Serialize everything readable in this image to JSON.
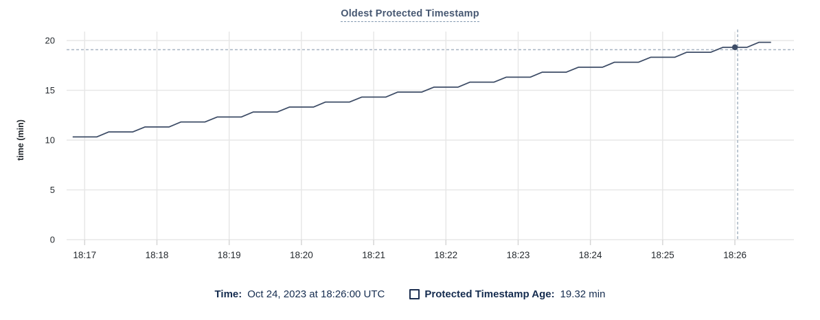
{
  "header": {
    "title": "Oldest Protected Timestamp"
  },
  "footer": {
    "time_label": "Time:",
    "time_value": "Oct 24, 2023 at 18:26:00 UTC",
    "series_label": "Protected Timestamp Age:",
    "series_value": "19.32 min"
  },
  "colors": {
    "line": "#3d4c66",
    "dot": "#3d4c66",
    "grid": "#e7e7e7",
    "tick_stub": "#d6d6d6",
    "crosshair": "#a6b4c2",
    "axis_text": "#24292e",
    "title_text": "#475872",
    "footer_text": "#152c4f"
  },
  "chart_data": {
    "type": "line",
    "title": "Oldest Protected Timestamp",
    "xlabel": "",
    "ylabel": "time (min)",
    "ylim": [
      0,
      20
    ],
    "yticks": [
      0,
      5,
      10,
      15,
      20
    ],
    "x_tick_labels": [
      "18:17",
      "18:18",
      "18:19",
      "18:20",
      "18:21",
      "18:22",
      "18:23",
      "18:24",
      "18:25",
      "18:26"
    ],
    "x_tick_seconds": [
      0,
      60,
      120,
      180,
      240,
      300,
      360,
      420,
      480,
      540
    ],
    "x_domain_seconds": [
      -15,
      589
    ],
    "x_reference_time": "18:17",
    "grid": true,
    "legend_position": "bottom",
    "series": [
      {
        "name": "Protected Timestamp Age",
        "unit": "min",
        "points": [
          [
            -10,
            10.32
          ],
          [
            0,
            10.32
          ],
          [
            10,
            10.32
          ],
          [
            20,
            10.82
          ],
          [
            30,
            10.82
          ],
          [
            40,
            10.82
          ],
          [
            50,
            11.32
          ],
          [
            60,
            11.32
          ],
          [
            70,
            11.32
          ],
          [
            80,
            11.82
          ],
          [
            90,
            11.82
          ],
          [
            100,
            11.82
          ],
          [
            110,
            12.32
          ],
          [
            120,
            12.32
          ],
          [
            130,
            12.32
          ],
          [
            140,
            12.82
          ],
          [
            150,
            12.82
          ],
          [
            160,
            12.82
          ],
          [
            170,
            13.32
          ],
          [
            180,
            13.32
          ],
          [
            190,
            13.32
          ],
          [
            200,
            13.82
          ],
          [
            210,
            13.82
          ],
          [
            220,
            13.82
          ],
          [
            230,
            14.32
          ],
          [
            240,
            14.32
          ],
          [
            250,
            14.32
          ],
          [
            260,
            14.82
          ],
          [
            270,
            14.82
          ],
          [
            280,
            14.82
          ],
          [
            290,
            15.32
          ],
          [
            300,
            15.32
          ],
          [
            310,
            15.32
          ],
          [
            320,
            15.82
          ],
          [
            330,
            15.82
          ],
          [
            340,
            15.82
          ],
          [
            350,
            16.32
          ],
          [
            360,
            16.32
          ],
          [
            370,
            16.32
          ],
          [
            380,
            16.82
          ],
          [
            390,
            16.82
          ],
          [
            400,
            16.82
          ],
          [
            410,
            17.32
          ],
          [
            420,
            17.32
          ],
          [
            430,
            17.32
          ],
          [
            440,
            17.82
          ],
          [
            450,
            17.82
          ],
          [
            460,
            17.82
          ],
          [
            470,
            18.32
          ],
          [
            480,
            18.32
          ],
          [
            490,
            18.32
          ],
          [
            500,
            18.82
          ],
          [
            510,
            18.82
          ],
          [
            520,
            18.82
          ],
          [
            530,
            19.32
          ],
          [
            540,
            19.32
          ],
          [
            550,
            19.32
          ],
          [
            560,
            19.82
          ],
          [
            570,
            19.82
          ]
        ]
      }
    ],
    "hover": {
      "x_seconds": 540,
      "x_label": "18:26:00",
      "value": 19.32,
      "date_label": "Oct 24, 2023 at 18:26:00 UTC"
    }
  }
}
